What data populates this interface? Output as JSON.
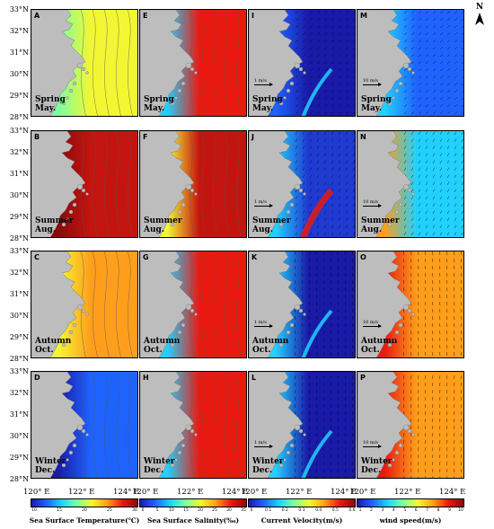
{
  "north_arrow": {
    "letter": "N",
    "icon": "north-arrow-icon"
  },
  "y_labels": [
    "33°N",
    "32°N",
    "31°N",
    "30°N",
    "29°N",
    "28°N"
  ],
  "x_labels": [
    "120° E",
    "122° E",
    "124° E"
  ],
  "columns": [
    {
      "variable": "sst",
      "colorbar_title": "Sea Surface Temperature(℃)",
      "ticks": [
        "10",
        "15",
        "20",
        "25",
        "30"
      ],
      "colors": [
        "#1a1aa8",
        "#1f63ff",
        "#21d1ff",
        "#7cffa0",
        "#f3f733",
        "#ff9e1b",
        "#e81a10",
        "#8a0a0a"
      ]
    },
    {
      "variable": "sss",
      "colorbar_title": "Sea Surface Salinity(‰)",
      "ticks": [
        "0",
        "5",
        "10",
        "15",
        "20",
        "25",
        "30",
        "35"
      ],
      "colors": [
        "#1a1aa8",
        "#1f63ff",
        "#21d1ff",
        "#7cffa0",
        "#f3f733",
        "#ff9e1b",
        "#e81a10",
        "#8a0a0a"
      ]
    },
    {
      "variable": "current",
      "colorbar_title": "Current Velocity(m/s)",
      "ticks": [
        "0",
        "0.1",
        "0.2",
        "0.3",
        "0.4",
        "0.5",
        "0.6"
      ],
      "colors": [
        "#1a1aa8",
        "#1f63ff",
        "#21d1ff",
        "#7cffa0",
        "#f3f733",
        "#ff9e1b",
        "#e81a10",
        "#8a0a0a"
      ]
    },
    {
      "variable": "wind",
      "colorbar_title": "wind speed(m/s)",
      "ticks": [
        "1",
        "2",
        "3",
        "4",
        "5",
        "6",
        "7",
        "8",
        "9",
        "10"
      ],
      "colors": [
        "#1a1aa8",
        "#1f63ff",
        "#21d1ff",
        "#7cffa0",
        "#f3f733",
        "#ff9e1b",
        "#e81a10",
        "#8a0a0a"
      ]
    }
  ],
  "rows": [
    {
      "season": "Spring",
      "month": "May."
    },
    {
      "season": "Summer",
      "month": "Aug."
    },
    {
      "season": "Autumn",
      "month": "Oct."
    },
    {
      "season": "Winter",
      "month": "Dec."
    }
  ],
  "panels": [
    {
      "label": "A",
      "col": 0,
      "row": 0,
      "fill": "#f3f733",
      "near": "#7cffa0"
    },
    {
      "label": "E",
      "col": 1,
      "row": 0,
      "fill": "#e81a10",
      "near": "#21d1ff"
    },
    {
      "label": "I",
      "col": 2,
      "row": 0,
      "fill": "#1a1aa8",
      "near": "#1f63ff",
      "scale": "1 m/s"
    },
    {
      "label": "M",
      "col": 3,
      "row": 0,
      "fill": "#1f63ff",
      "near": "#21d1ff",
      "scale": "10 m/s"
    },
    {
      "label": "B",
      "col": 0,
      "row": 1,
      "fill": "#c4140f",
      "near": "#8a0a0a"
    },
    {
      "label": "F",
      "col": 1,
      "row": 1,
      "fill": "#c4140f",
      "near": "#f3f733"
    },
    {
      "label": "J",
      "col": 2,
      "row": 1,
      "fill": "#1f3ad0",
      "near": "#21d1ff",
      "scale": "1 m/s"
    },
    {
      "label": "N",
      "col": 3,
      "row": 1,
      "fill": "#21d1ff",
      "near": "#ff9e1b",
      "scale": "10 m/s"
    },
    {
      "label": "C",
      "col": 0,
      "row": 2,
      "fill": "#ff9e1b",
      "near": "#f3f733"
    },
    {
      "label": "G",
      "col": 1,
      "row": 2,
      "fill": "#e81a10",
      "near": "#21d1ff"
    },
    {
      "label": "K",
      "col": 2,
      "row": 2,
      "fill": "#1a1aa8",
      "near": "#21d1ff",
      "scale": "1 m/s"
    },
    {
      "label": "O",
      "col": 3,
      "row": 2,
      "fill": "#ff9e1b",
      "near": "#e81a10",
      "scale": "10 m/s"
    },
    {
      "label": "D",
      "col": 0,
      "row": 3,
      "fill": "#1f63ff",
      "near": "#1a1aa8"
    },
    {
      "label": "H",
      "col": 1,
      "row": 3,
      "fill": "#e81a10",
      "near": "#21d1ff"
    },
    {
      "label": "L",
      "col": 2,
      "row": 3,
      "fill": "#1a1aa8",
      "near": "#21d1ff",
      "scale": "1 m/s"
    },
    {
      "label": "P",
      "col": 3,
      "row": 3,
      "fill": "#ff9e1b",
      "near": "#e81a10",
      "scale": "10 m/s"
    }
  ]
}
